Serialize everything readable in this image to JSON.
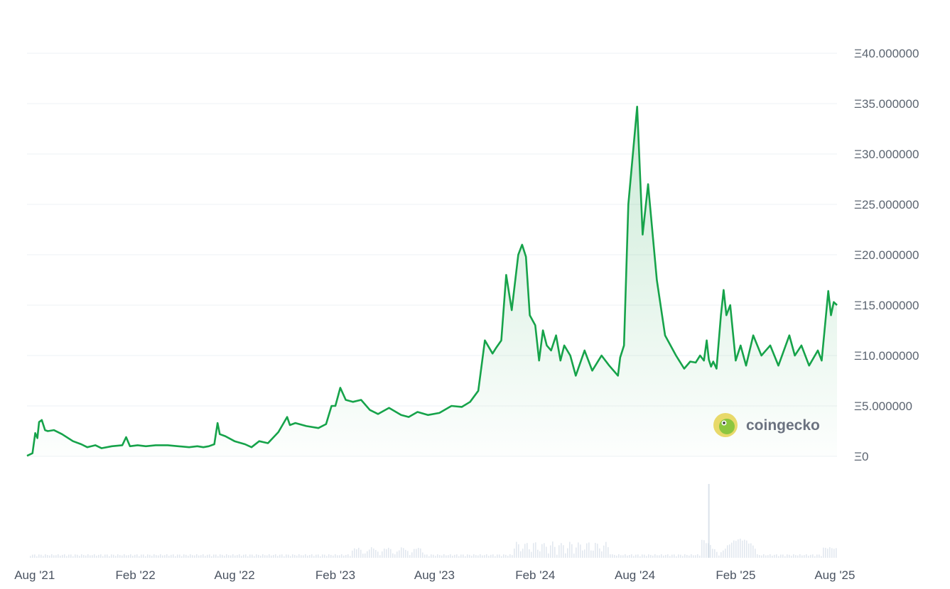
{
  "chart_data": {
    "type": "area",
    "title": "",
    "xlabel": "",
    "ylabel": "",
    "ylim": [
      0,
      40
    ],
    "y_tick_labels": [
      "Ξ0",
      "Ξ5.000000",
      "Ξ10.000000",
      "Ξ15.000000",
      "Ξ20.000000",
      "Ξ25.000000",
      "Ξ30.000000",
      "Ξ35.000000",
      "Ξ40.000000"
    ],
    "y_tick_values": [
      0,
      5,
      10,
      15,
      20,
      25,
      30,
      35,
      40
    ],
    "x_tick_labels": [
      "Aug '21",
      "Feb '22",
      "Aug '22",
      "Feb '23",
      "Aug '23",
      "Feb '24",
      "Aug '24",
      "Feb '25",
      "Aug '25"
    ],
    "x_tick_dates": [
      "2021-08-01",
      "2022-02-01",
      "2022-08-01",
      "2023-02-01",
      "2023-08-01",
      "2024-02-01",
      "2024-08-01",
      "2025-02-01",
      "2025-08-01"
    ],
    "x_range": [
      "2021-07-18",
      "2025-08-05"
    ],
    "grid": true,
    "line_color": "#16a34a",
    "fill_color": "#16a34a",
    "volume_color": "#cbd5e1",
    "series": [
      {
        "x": [
          "2021-07-18",
          "2021-07-28",
          "2021-08-02",
          "2021-08-06",
          "2021-08-09",
          "2021-08-14",
          "2021-08-20",
          "2021-08-25",
          "2021-09-05",
          "2021-09-20",
          "2021-10-10",
          "2021-10-25",
          "2021-11-05",
          "2021-11-20",
          "2021-12-01",
          "2021-12-20",
          "2022-01-08",
          "2022-01-15",
          "2022-01-22",
          "2022-02-05",
          "2022-02-20",
          "2022-03-10",
          "2022-04-01",
          "2022-04-20",
          "2022-05-10",
          "2022-05-25",
          "2022-06-05",
          "2022-06-15",
          "2022-06-25",
          "2022-07-01",
          "2022-07-05",
          "2022-07-15",
          "2022-08-01",
          "2022-08-20",
          "2022-09-01",
          "2022-09-15",
          "2022-10-01",
          "2022-10-20",
          "2022-11-05",
          "2022-11-10",
          "2022-11-20",
          "2022-12-10",
          "2023-01-01",
          "2023-01-15",
          "2023-01-25",
          "2023-02-01",
          "2023-02-10",
          "2023-02-20",
          "2023-03-05",
          "2023-03-20",
          "2023-04-05",
          "2023-04-20",
          "2023-05-10",
          "2023-06-01",
          "2023-06-15",
          "2023-07-01",
          "2023-07-20",
          "2023-08-10",
          "2023-09-01",
          "2023-09-20",
          "2023-10-05",
          "2023-10-20",
          "2023-11-01",
          "2023-11-15",
          "2023-11-22",
          "2023-12-01",
          "2023-12-10",
          "2023-12-20",
          "2024-01-01",
          "2024-01-08",
          "2024-01-15",
          "2024-01-22",
          "2024-02-01",
          "2024-02-08",
          "2024-02-15",
          "2024-02-22",
          "2024-03-01",
          "2024-03-10",
          "2024-03-18",
          "2024-03-25",
          "2024-04-05",
          "2024-04-15",
          "2024-05-01",
          "2024-05-15",
          "2024-06-01",
          "2024-06-15",
          "2024-07-01",
          "2024-07-05",
          "2024-07-12",
          "2024-07-20",
          "2024-08-05",
          "2024-08-15",
          "2024-08-25",
          "2024-09-10",
          "2024-09-25",
          "2024-10-15",
          "2024-10-30",
          "2024-11-10",
          "2024-11-20",
          "2024-11-28",
          "2024-12-05",
          "2024-12-10",
          "2024-12-14",
          "2024-12-18",
          "2024-12-22",
          "2024-12-28",
          "2025-01-05",
          "2025-01-10",
          "2025-01-15",
          "2025-01-22",
          "2025-02-01",
          "2025-02-10",
          "2025-02-20",
          "2025-03-05",
          "2025-03-20",
          "2025-04-05",
          "2025-04-20",
          "2025-05-10",
          "2025-05-20",
          "2025-06-01",
          "2025-06-15",
          "2025-07-01",
          "2025-07-08",
          "2025-07-15",
          "2025-07-20",
          "2025-07-25",
          "2025-07-30",
          "2025-08-05"
        ],
        "values": [
          0.05,
          0.3,
          2.3,
          1.8,
          3.4,
          3.6,
          2.6,
          2.5,
          2.6,
          2.2,
          1.5,
          1.2,
          0.9,
          1.1,
          0.8,
          1.0,
          1.1,
          1.9,
          1.0,
          1.1,
          1.0,
          1.1,
          1.1,
          1.0,
          0.9,
          1.0,
          0.9,
          1.0,
          1.2,
          3.3,
          2.2,
          2.0,
          1.5,
          1.2,
          0.9,
          1.5,
          1.3,
          2.4,
          3.9,
          3.1,
          3.3,
          3.0,
          2.8,
          3.2,
          5.0,
          5.0,
          6.8,
          5.6,
          5.4,
          5.6,
          4.6,
          4.2,
          4.8,
          4.1,
          3.9,
          4.4,
          4.1,
          4.3,
          5.0,
          4.9,
          5.4,
          6.5,
          11.5,
          10.2,
          10.8,
          11.5,
          18.0,
          14.5,
          20.0,
          21.0,
          19.8,
          14.0,
          13.0,
          9.5,
          12.5,
          11.0,
          10.5,
          12.0,
          9.5,
          11.0,
          10.0,
          8.0,
          10.5,
          8.5,
          10.0,
          9.0,
          8.0,
          9.8,
          11.0,
          25.0,
          34.7,
          22.0,
          27.0,
          17.5,
          12.0,
          10.0,
          8.7,
          9.4,
          9.3,
          10.0,
          9.5,
          11.5,
          9.6,
          8.9,
          9.4,
          8.7,
          14.0,
          16.5,
          14.0,
          15.0,
          9.5,
          11.0,
          9.0,
          12.0,
          10.0,
          11.0,
          9.0,
          12.0,
          10.0,
          11.0,
          9.0,
          10.5,
          9.5,
          13.5,
          16.4,
          14.0,
          15.3,
          15.0
        ]
      }
    ]
  },
  "watermark": {
    "text": "coingecko"
  }
}
